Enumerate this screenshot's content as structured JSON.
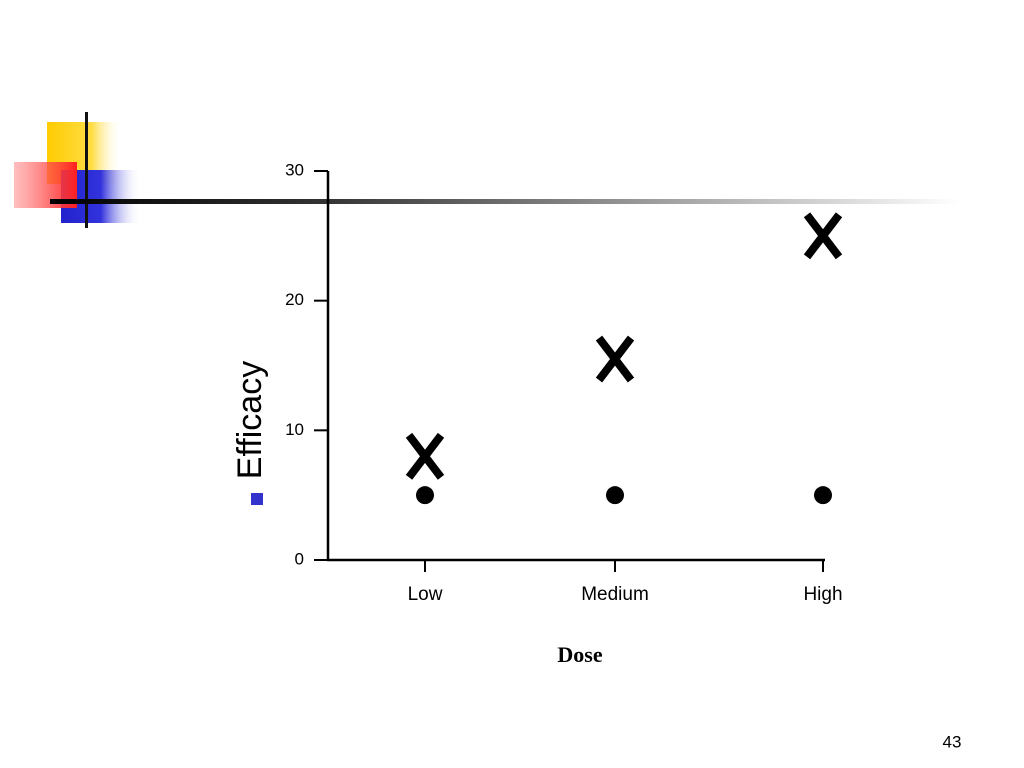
{
  "chart_data": {
    "type": "scatter",
    "x_label": "Dose",
    "y_label": "Efficacy",
    "categories": [
      "Low",
      "Medium",
      "High"
    ],
    "series": [
      {
        "marker": "x",
        "color": "#000000",
        "values": [
          8,
          15.5,
          25
        ]
      },
      {
        "marker": "dot",
        "color": "#000000",
        "values": [
          5,
          5,
          5
        ]
      }
    ],
    "ylim": [
      0,
      30
    ],
    "yticks": [
      0,
      10,
      20,
      30
    ]
  },
  "page_number": "43"
}
